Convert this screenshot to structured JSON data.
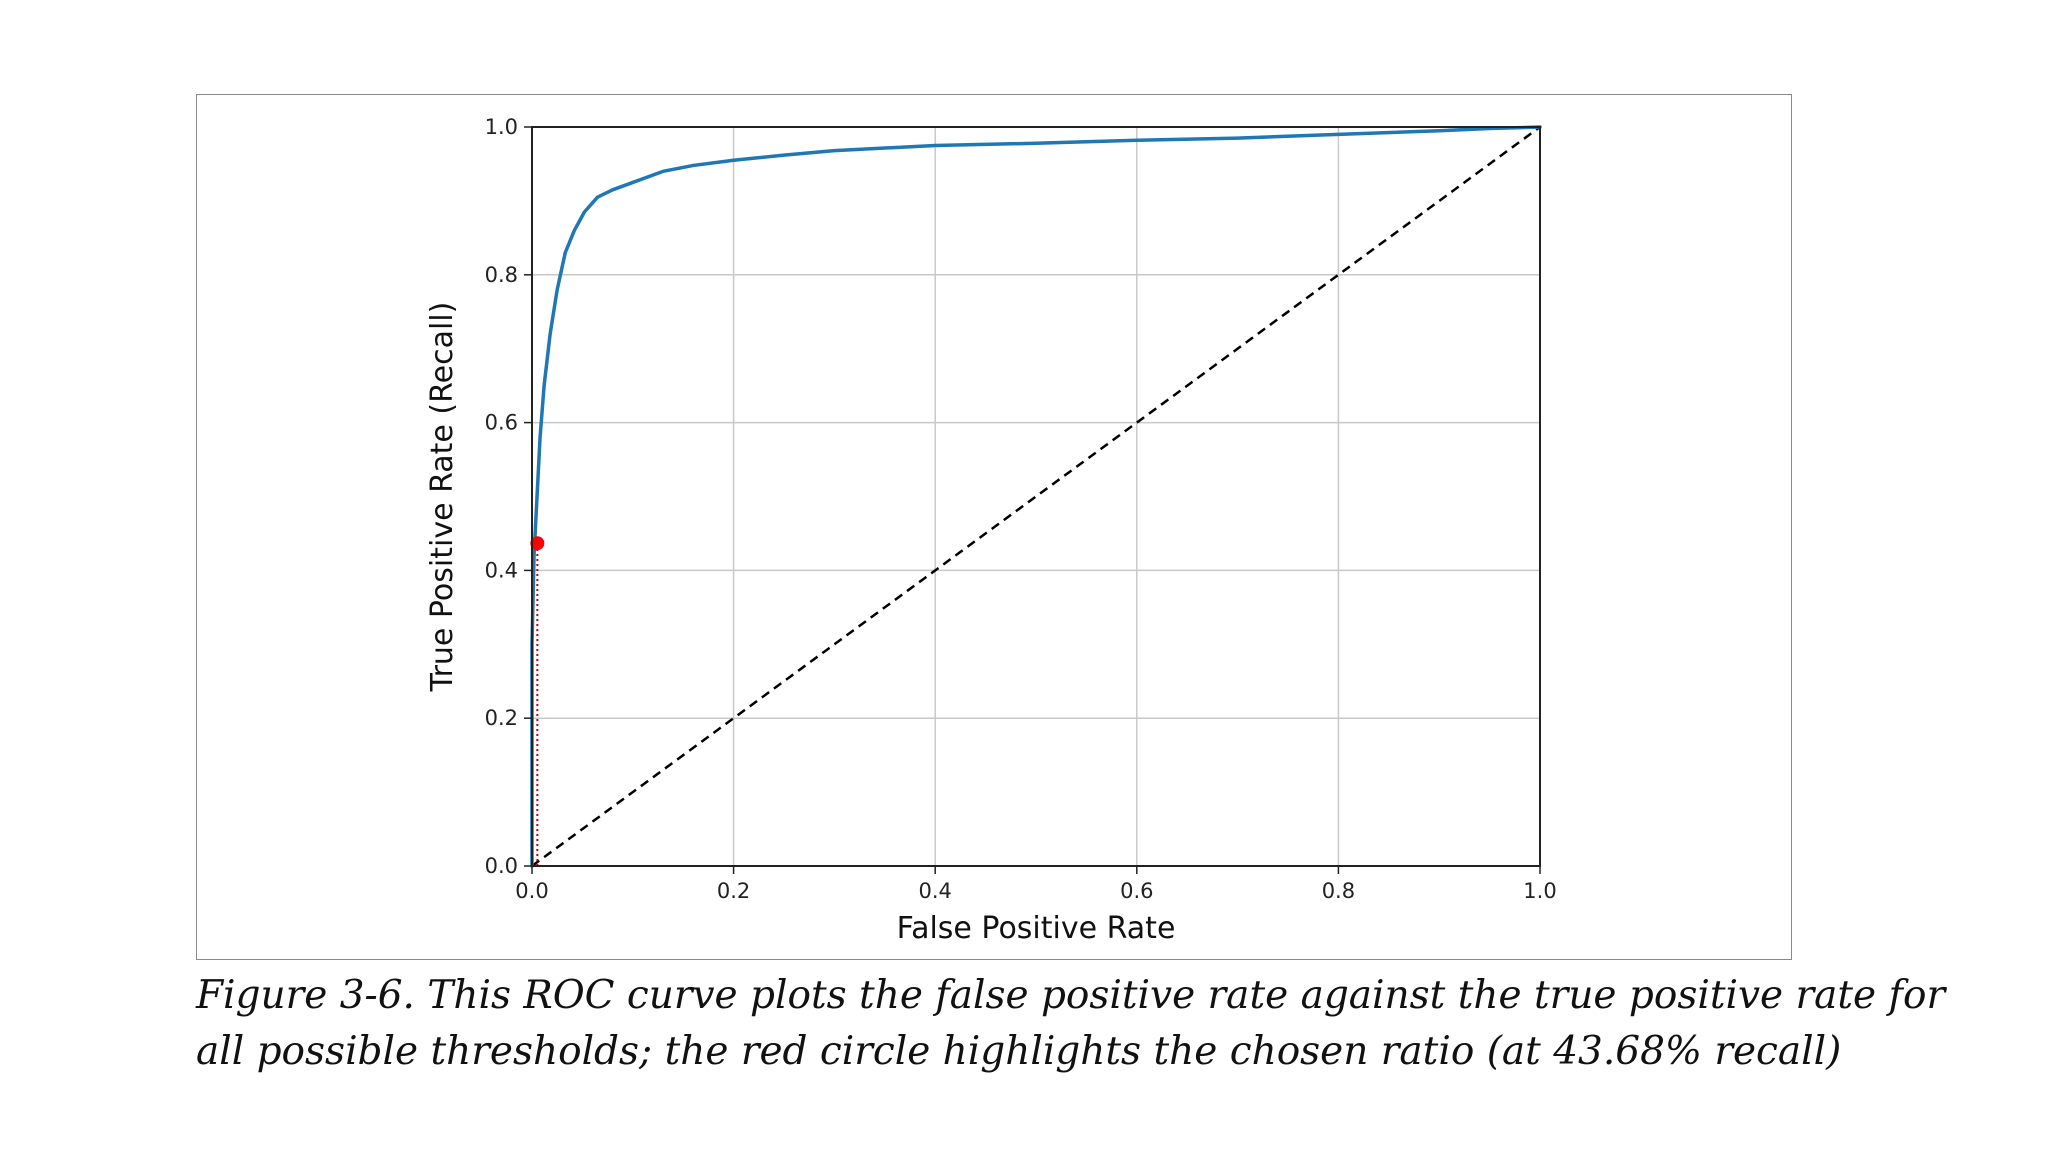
{
  "chart_data": {
    "type": "line",
    "title": "",
    "xlabel": "False Positive Rate",
    "ylabel": "True Positive Rate (Recall)",
    "xlim": [
      0.0,
      1.0
    ],
    "ylim": [
      0.0,
      1.0
    ],
    "x_ticks": [
      "0.0",
      "0.2",
      "0.4",
      "0.6",
      "0.8",
      "1.0"
    ],
    "y_ticks": [
      "0.0",
      "0.2",
      "0.4",
      "0.6",
      "0.8",
      "1.0"
    ],
    "grid": true,
    "legend": "none",
    "series": [
      {
        "style": "solid",
        "color": "#1f77b4",
        "x": [
          0.0,
          0.0,
          0.002,
          0.005,
          0.008,
          0.012,
          0.018,
          0.025,
          0.033,
          0.042,
          0.052,
          0.065,
          0.08,
          0.1,
          0.13,
          0.16,
          0.2,
          0.25,
          0.3,
          0.4,
          0.5,
          0.6,
          0.7,
          0.8,
          0.9,
          0.95,
          1.0
        ],
        "y": [
          0.0,
          0.3,
          0.42,
          0.5,
          0.58,
          0.65,
          0.72,
          0.78,
          0.83,
          0.86,
          0.885,
          0.905,
          0.915,
          0.925,
          0.94,
          0.948,
          0.955,
          0.962,
          0.968,
          0.975,
          0.978,
          0.982,
          0.985,
          0.99,
          0.995,
          0.998,
          1.0
        ]
      },
      {
        "style": "dashed",
        "color": "#000000",
        "x": [
          0.0,
          1.0
        ],
        "y": [
          0.0,
          1.0
        ]
      }
    ],
    "highlight_point": {
      "x": 0.0053,
      "y": 0.4368,
      "color": "#ff0000",
      "dotted_color": "#cc0000"
    }
  },
  "caption": {
    "line1": "Figure 3-6. This ROC curve plots the false positive rate against the true positive rate for",
    "line2": "all possible thresholds; the red circle highlights the chosen ratio (at 43.68% recall)"
  }
}
